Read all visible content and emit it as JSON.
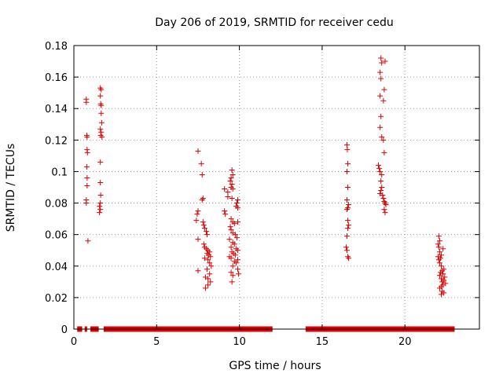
{
  "chart_data": {
    "type": "scatter",
    "title": "Day 206 of 2019, SRMTID for receiver cedu",
    "xlabel": "GPS time / hours",
    "ylabel": "SRMTID / TECUs",
    "xlim": [
      0,
      24.5
    ],
    "ylim": [
      0,
      0.18
    ],
    "xticks": [
      0,
      5,
      10,
      15,
      20
    ],
    "xtick_labels": [
      "0",
      "5",
      "10",
      "15",
      "20"
    ],
    "yticks": [
      0,
      0.02,
      0.04,
      0.06,
      0.08,
      0.1,
      0.12,
      0.14,
      0.16,
      0.18
    ],
    "ytick_labels": [
      "0",
      "0.02",
      "0.04",
      "0.06",
      "0.08",
      "0.1",
      "0.12",
      "0.14",
      "0.16",
      "0.18"
    ],
    "grid": true,
    "marker": "+",
    "color": "#e00000",
    "zero_bands": [
      [
        0.2,
        0.5
      ],
      [
        0.65,
        0.8
      ],
      [
        1.0,
        1.5
      ],
      [
        1.8,
        12.0
      ],
      [
        14.0,
        23.0
      ]
    ],
    "series": [
      {
        "name": "SRMTID",
        "points": [
          [
            0.75,
            0.146
          ],
          [
            0.75,
            0.144
          ],
          [
            0.78,
            0.123
          ],
          [
            0.8,
            0.122
          ],
          [
            0.8,
            0.114
          ],
          [
            0.82,
            0.112
          ],
          [
            0.78,
            0.103
          ],
          [
            0.8,
            0.096
          ],
          [
            0.8,
            0.091
          ],
          [
            0.75,
            0.082
          ],
          [
            0.75,
            0.08
          ],
          [
            0.85,
            0.056
          ],
          [
            1.6,
            0.153
          ],
          [
            1.65,
            0.152
          ],
          [
            1.6,
            0.148
          ],
          [
            1.62,
            0.143
          ],
          [
            1.65,
            0.142
          ],
          [
            1.65,
            0.137
          ],
          [
            1.68,
            0.131
          ],
          [
            1.6,
            0.127
          ],
          [
            1.65,
            0.125
          ],
          [
            1.62,
            0.123
          ],
          [
            1.7,
            0.122
          ],
          [
            1.6,
            0.106
          ],
          [
            1.6,
            0.093
          ],
          [
            1.62,
            0.085
          ],
          [
            1.6,
            0.08
          ],
          [
            1.55,
            0.078
          ],
          [
            1.6,
            0.076
          ],
          [
            1.55,
            0.074
          ],
          [
            7.5,
            0.113
          ],
          [
            7.7,
            0.105
          ],
          [
            7.75,
            0.098
          ],
          [
            7.8,
            0.083
          ],
          [
            7.75,
            0.082
          ],
          [
            7.5,
            0.075
          ],
          [
            7.45,
            0.073
          ],
          [
            7.4,
            0.069
          ],
          [
            7.8,
            0.068
          ],
          [
            7.85,
            0.066
          ],
          [
            7.9,
            0.064
          ],
          [
            8.0,
            0.062
          ],
          [
            8.05,
            0.06
          ],
          [
            7.5,
            0.057
          ],
          [
            7.85,
            0.054
          ],
          [
            7.9,
            0.052
          ],
          [
            8.0,
            0.051
          ],
          [
            8.1,
            0.05
          ],
          [
            8.2,
            0.049
          ],
          [
            8.05,
            0.048
          ],
          [
            8.15,
            0.047
          ],
          [
            8.25,
            0.046
          ],
          [
            7.9,
            0.045
          ],
          [
            8.1,
            0.044
          ],
          [
            8.2,
            0.042
          ],
          [
            8.3,
            0.04
          ],
          [
            8.05,
            0.038
          ],
          [
            7.5,
            0.037
          ],
          [
            8.2,
            0.035
          ],
          [
            7.95,
            0.033
          ],
          [
            8.1,
            0.032
          ],
          [
            8.25,
            0.03
          ],
          [
            8.1,
            0.028
          ],
          [
            7.95,
            0.026
          ],
          [
            9.1,
            0.089
          ],
          [
            9.3,
            0.087
          ],
          [
            9.5,
            0.09
          ],
          [
            9.6,
            0.089
          ],
          [
            9.55,
            0.101
          ],
          [
            9.6,
            0.098
          ],
          [
            9.5,
            0.096
          ],
          [
            9.45,
            0.094
          ],
          [
            9.55,
            0.092
          ],
          [
            9.3,
            0.084
          ],
          [
            9.55,
            0.083
          ],
          [
            9.9,
            0.082
          ],
          [
            9.85,
            0.08
          ],
          [
            9.8,
            0.078
          ],
          [
            9.9,
            0.077
          ],
          [
            9.1,
            0.075
          ],
          [
            9.15,
            0.073
          ],
          [
            9.5,
            0.07
          ],
          [
            9.6,
            0.068
          ],
          [
            9.7,
            0.067
          ],
          [
            9.9,
            0.068
          ],
          [
            9.45,
            0.065
          ],
          [
            9.5,
            0.063
          ],
          [
            9.6,
            0.061
          ],
          [
            9.75,
            0.06
          ],
          [
            9.85,
            0.058
          ],
          [
            9.4,
            0.057
          ],
          [
            9.6,
            0.055
          ],
          [
            9.7,
            0.054
          ],
          [
            9.5,
            0.052
          ],
          [
            9.8,
            0.051
          ],
          [
            9.9,
            0.05
          ],
          [
            9.55,
            0.049
          ],
          [
            9.65,
            0.048
          ],
          [
            9.75,
            0.047
          ],
          [
            9.4,
            0.046
          ],
          [
            9.5,
            0.045
          ],
          [
            9.9,
            0.044
          ],
          [
            9.7,
            0.043
          ],
          [
            9.8,
            0.042
          ],
          [
            9.6,
            0.04
          ],
          [
            9.9,
            0.038
          ],
          [
            9.5,
            0.036
          ],
          [
            9.95,
            0.035
          ],
          [
            9.6,
            0.034
          ],
          [
            9.55,
            0.03
          ],
          [
            16.5,
            0.117
          ],
          [
            16.52,
            0.114
          ],
          [
            16.55,
            0.105
          ],
          [
            16.5,
            0.1
          ],
          [
            16.55,
            0.09
          ],
          [
            16.5,
            0.082
          ],
          [
            16.6,
            0.079
          ],
          [
            16.55,
            0.077
          ],
          [
            16.5,
            0.076
          ],
          [
            16.55,
            0.069
          ],
          [
            16.6,
            0.066
          ],
          [
            16.55,
            0.064
          ],
          [
            16.5,
            0.059
          ],
          [
            16.45,
            0.052
          ],
          [
            16.5,
            0.05
          ],
          [
            16.55,
            0.046
          ],
          [
            16.6,
            0.045
          ],
          [
            18.55,
            0.172
          ],
          [
            18.6,
            0.169
          ],
          [
            18.8,
            0.17
          ],
          [
            18.5,
            0.163
          ],
          [
            18.55,
            0.159
          ],
          [
            18.75,
            0.152
          ],
          [
            18.5,
            0.148
          ],
          [
            18.7,
            0.145
          ],
          [
            18.55,
            0.135
          ],
          [
            18.5,
            0.128
          ],
          [
            18.6,
            0.122
          ],
          [
            18.7,
            0.12
          ],
          [
            18.75,
            0.112
          ],
          [
            18.4,
            0.104
          ],
          [
            18.45,
            0.102
          ],
          [
            18.5,
            0.1
          ],
          [
            18.6,
            0.098
          ],
          [
            18.55,
            0.094
          ],
          [
            18.6,
            0.09
          ],
          [
            18.55,
            0.088
          ],
          [
            18.5,
            0.086
          ],
          [
            18.65,
            0.085
          ],
          [
            18.7,
            0.083
          ],
          [
            18.75,
            0.081
          ],
          [
            18.8,
            0.08
          ],
          [
            18.85,
            0.079
          ],
          [
            18.75,
            0.076
          ],
          [
            18.8,
            0.074
          ],
          [
            22.05,
            0.059
          ],
          [
            22.1,
            0.056
          ],
          [
            22.0,
            0.054
          ],
          [
            22.05,
            0.052
          ],
          [
            22.3,
            0.051
          ],
          [
            22.1,
            0.049
          ],
          [
            22.2,
            0.047
          ],
          [
            22.0,
            0.046
          ],
          [
            22.15,
            0.045
          ],
          [
            22.05,
            0.044
          ],
          [
            22.1,
            0.042
          ],
          [
            22.2,
            0.04
          ],
          [
            22.35,
            0.038
          ],
          [
            22.25,
            0.037
          ],
          [
            22.15,
            0.036
          ],
          [
            22.3,
            0.035
          ],
          [
            22.1,
            0.034
          ],
          [
            22.4,
            0.033
          ],
          [
            22.2,
            0.032
          ],
          [
            22.35,
            0.031
          ],
          [
            22.25,
            0.03
          ],
          [
            22.45,
            0.029
          ],
          [
            22.3,
            0.028
          ],
          [
            22.2,
            0.027
          ],
          [
            22.1,
            0.026
          ],
          [
            22.25,
            0.024
          ],
          [
            22.35,
            0.023
          ],
          [
            22.2,
            0.022
          ]
        ]
      }
    ]
  }
}
